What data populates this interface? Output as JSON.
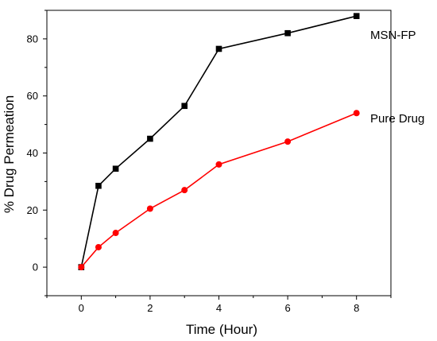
{
  "chart_data": {
    "type": "line",
    "xlabel": "Time (Hour)",
    "ylabel": "% Drug Permeation",
    "xlim": [
      -1,
      9
    ],
    "ylim": [
      -10,
      90
    ],
    "xticks": [
      0,
      2,
      4,
      6,
      8
    ],
    "yticks": [
      0,
      20,
      40,
      60,
      80
    ],
    "grid": false,
    "legend": "inline labels at line ends",
    "series": [
      {
        "name": "MSN-FP",
        "color": "#000000",
        "marker": "square",
        "x": [
          0,
          0.5,
          1,
          2,
          3,
          4,
          6,
          8
        ],
        "y": [
          0,
          28.5,
          34.5,
          45,
          56.5,
          76.5,
          82,
          88
        ]
      },
      {
        "name": "Pure Drug",
        "color": "#ff0000",
        "marker": "circle",
        "x": [
          0,
          0.5,
          1,
          2,
          3,
          4,
          6,
          8
        ],
        "y": [
          0,
          7,
          12,
          20.5,
          27,
          36,
          44,
          54
        ]
      }
    ]
  }
}
